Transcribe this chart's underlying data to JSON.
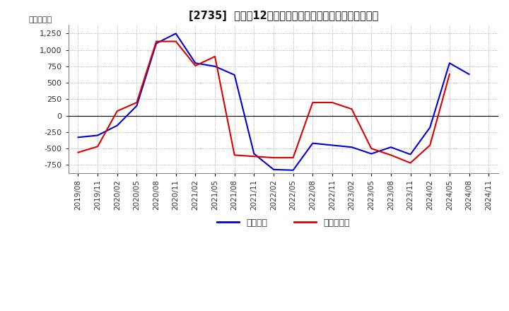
{
  "title": "[2735]  利益だ12か月移動合計の対前年同期増減額の推移",
  "ylabel": "（百万円）",
  "background_color": "#ffffff",
  "grid_color": "#999999",
  "ylim": [
    -875,
    1380
  ],
  "yticks": [
    -750,
    -500,
    -250,
    0,
    250,
    500,
    750,
    1000,
    1250
  ],
  "legend_labels": [
    "経常利益",
    "当期純利益"
  ],
  "legend_colors": [
    "#0000dd",
    "#dd0000"
  ],
  "x_labels": [
    "2019/08",
    "2019/11",
    "2020/02",
    "2020/05",
    "2020/08",
    "2020/11",
    "2021/02",
    "2021/05",
    "2021/08",
    "2021/11",
    "2022/02",
    "2022/05",
    "2022/08",
    "2022/11",
    "2023/02",
    "2023/05",
    "2023/08",
    "2023/11",
    "2024/02",
    "2024/05",
    "2024/08",
    "2024/11"
  ],
  "operating_profit": [
    -330,
    -300,
    -150,
    150,
    1100,
    1250,
    800,
    750,
    620,
    -580,
    -820,
    -830,
    -420,
    -450,
    -480,
    -580,
    -480,
    -590,
    -180,
    800,
    630,
    null
  ],
  "net_profit": [
    -560,
    -470,
    70,
    200,
    1130,
    1130,
    760,
    900,
    -600,
    -620,
    -640,
    -640,
    200,
    200,
    100,
    -500,
    -600,
    -720,
    -450,
    630,
    null,
    null
  ]
}
